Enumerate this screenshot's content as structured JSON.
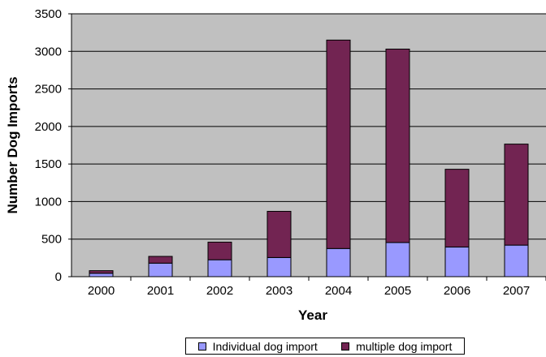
{
  "chart_data": {
    "type": "bar",
    "stacked": true,
    "categories": [
      "2000",
      "2001",
      "2002",
      "2003",
      "2004",
      "2005",
      "2006",
      "2007"
    ],
    "series": [
      {
        "name": "Individual dog import",
        "color": "#9999ff",
        "values": [
          45,
          180,
          225,
          255,
          375,
          455,
          395,
          420
        ]
      },
      {
        "name": "multiple dog import",
        "color": "#722452",
        "values": [
          35,
          90,
          235,
          615,
          2775,
          2575,
          1035,
          1345
        ]
      }
    ],
    "xlabel": "Year",
    "ylabel": "Number Dog Imports",
    "ylim": [
      0,
      3500
    ],
    "yticks": [
      "0",
      "500",
      "1000",
      "1500",
      "2000",
      "2500",
      "3000",
      "3500"
    ],
    "grid": true,
    "plot_background": "#c0c0c0",
    "legend_position": "bottom"
  }
}
